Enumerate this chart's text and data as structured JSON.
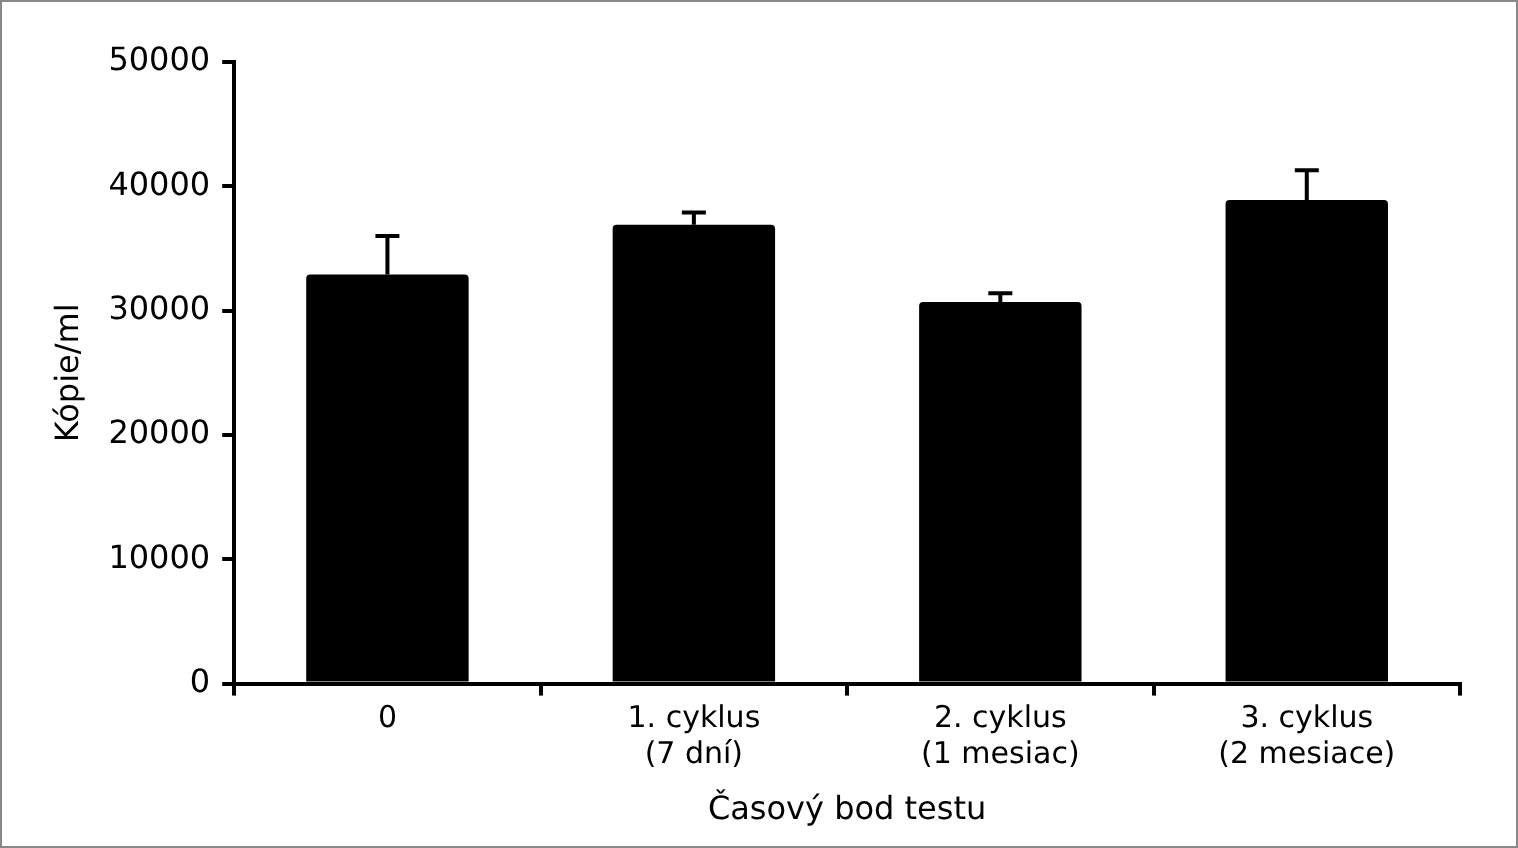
{
  "chart_data": {
    "type": "bar",
    "xlabel": "Časový bod testu",
    "ylabel": "Kópie/ml",
    "categories": [
      "0",
      "1. cyklus\n(7 dní)",
      "2. cyklus\n(1 mesiac)",
      "3. cyklus\n(2 mesiace)"
    ],
    "values": [
      32900,
      36900,
      30700,
      38900
    ],
    "color": "#000000",
    "errors": [
      [
        32900,
        36000
      ],
      [
        36900,
        37900
      ],
      [
        30700,
        31400
      ],
      [
        38900,
        41300
      ]
    ],
    "ylim": [
      0,
      50000
    ],
    "yticks": [
      0,
      10000,
      20000,
      30000,
      40000,
      50000
    ],
    "grid": false,
    "legend": false
  }
}
